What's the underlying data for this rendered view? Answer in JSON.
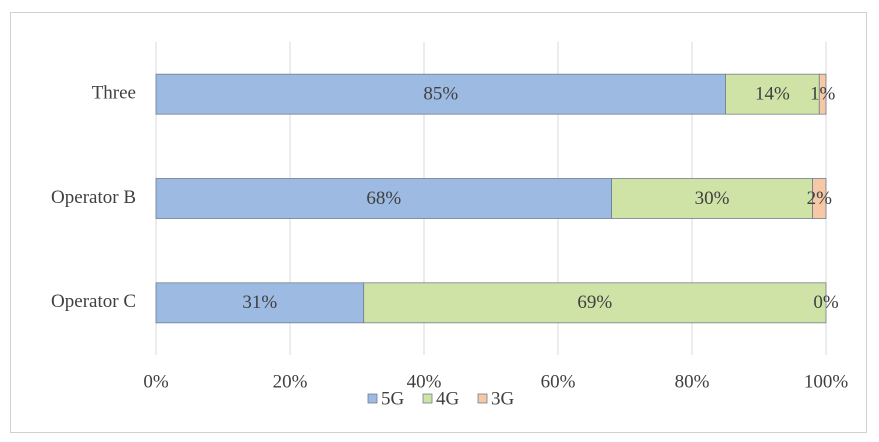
{
  "chart_data": {
    "type": "bar",
    "orientation": "horizontal",
    "stacked": true,
    "categories": [
      "Three",
      "Operator B",
      "Operator C"
    ],
    "series": [
      {
        "name": "5G",
        "color": "#9dbbe2",
        "values": [
          85,
          68,
          31
        ],
        "value_labels": [
          "85%",
          "68%",
          "31%"
        ]
      },
      {
        "name": "4G",
        "color": "#d0e3a6",
        "values": [
          14,
          30,
          69
        ],
        "value_labels": [
          "14%",
          "30%",
          "69%"
        ]
      },
      {
        "name": "3G",
        "color": "#f6c8a6",
        "values": [
          1,
          2,
          0
        ],
        "value_labels": [
          "1%",
          "2%",
          "0%"
        ]
      }
    ],
    "xlim": [
      0,
      100
    ],
    "xticks": [
      {
        "value": 0,
        "label": "0%"
      },
      {
        "value": 20,
        "label": "20%"
      },
      {
        "value": 40,
        "label": "40%"
      },
      {
        "value": 60,
        "label": "60%"
      },
      {
        "value": 80,
        "label": "80%"
      },
      {
        "value": 100,
        "label": "100%"
      }
    ],
    "grid": true,
    "legend": "bottom"
  }
}
